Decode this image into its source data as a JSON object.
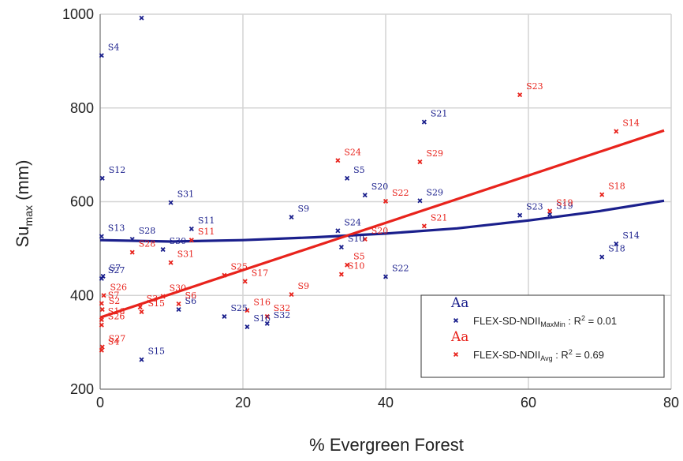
{
  "chart_data": {
    "type": "scatter",
    "xlabel": "% Evergreen Forest",
    "ylabel": "Su",
    "ylabel_sub": "max",
    "ylabel_unit": " (mm)",
    "xlim": [
      0,
      80
    ],
    "ylim": [
      200,
      1000
    ],
    "xticks": [
      "0",
      "20",
      "40",
      "60",
      "80"
    ],
    "yticks": [
      "200",
      "400",
      "600",
      "800",
      "1000"
    ],
    "grid": true,
    "legend_position": "bottom-right",
    "series": [
      {
        "color": "#1a1f8c",
        "legend_header": "Aa",
        "legend_main": "FLEX-SD-NDII",
        "legend_sub": "MaxMin",
        "legend_r2": " : R",
        "legend_sup": "2",
        "legend_val": " = 0.01",
        "points": [
          {
            "label": "S4",
            "x": 0.2,
            "y": 912
          },
          {
            "label": "S12",
            "x": 0.3,
            "y": 650
          },
          {
            "label": "S13",
            "x": 0.2,
            "y": 526
          },
          {
            "label": "S7",
            "x": 0.4,
            "y": 441
          },
          {
            "label": "S27",
            "x": 0.2,
            "y": 436
          },
          {
            "label": "S28",
            "x": 4.5,
            "y": 520
          },
          {
            "label": "",
            "x": 5.8,
            "y": 992
          },
          {
            "label": "S30",
            "x": 8.8,
            "y": 498
          },
          {
            "label": "S31",
            "x": 9.9,
            "y": 598
          },
          {
            "label": "S11",
            "x": 12.8,
            "y": 542
          },
          {
            "label": "S6",
            "x": 11.0,
            "y": 370
          },
          {
            "label": "S15",
            "x": 5.8,
            "y": 263
          },
          {
            "label": "S25",
            "x": 17.4,
            "y": 355
          },
          {
            "label": "S16",
            "x": 20.6,
            "y": 333
          },
          {
            "label": "S32",
            "x": 23.4,
            "y": 340
          },
          {
            "label": "S9",
            "x": 26.8,
            "y": 567
          },
          {
            "label": "S5",
            "x": 34.6,
            "y": 650
          },
          {
            "label": "S20",
            "x": 37.1,
            "y": 614
          },
          {
            "label": "S24",
            "x": 33.3,
            "y": 538
          },
          {
            "label": "S10",
            "x": 33.8,
            "y": 503
          },
          {
            "label": "S22",
            "x": 40.0,
            "y": 440
          },
          {
            "label": "S21",
            "x": 45.4,
            "y": 770
          },
          {
            "label": "S29",
            "x": 44.8,
            "y": 602
          },
          {
            "label": "S23",
            "x": 58.8,
            "y": 571
          },
          {
            "label": "S19",
            "x": 63.0,
            "y": 573
          },
          {
            "label": "S14",
            "x": 72.3,
            "y": 510
          },
          {
            "label": "S18",
            "x": 70.3,
            "y": 482
          }
        ]
      },
      {
        "color": "#e8231c",
        "legend_header": "Aa",
        "legend_main": "FLEX-SD-NDII",
        "legend_sub": "Avg",
        "legend_r2": " : R",
        "legend_sup": "2",
        "legend_val": " = 0.69",
        "points": [
          {
            "label": "S7",
            "x": 0.2,
            "y": 383
          },
          {
            "label": "S26",
            "x": 0.5,
            "y": 400
          },
          {
            "label": "S2",
            "x": 0.3,
            "y": 370
          },
          {
            "label": "S16",
            "x": 0.2,
            "y": 348
          },
          {
            "label": "S26",
            "x": 0.2,
            "y": 337
          },
          {
            "label": "S27",
            "x": 0.3,
            "y": 290
          },
          {
            "label": "S4",
            "x": 0.2,
            "y": 283
          },
          {
            "label": "S28",
            "x": 4.5,
            "y": 492
          },
          {
            "label": "S3",
            "x": 5.6,
            "y": 375
          },
          {
            "label": "S15",
            "x": 5.8,
            "y": 365
          },
          {
            "label": "S30",
            "x": 8.8,
            "y": 398
          },
          {
            "label": "S31",
            "x": 9.9,
            "y": 470
          },
          {
            "label": "S6",
            "x": 11.0,
            "y": 382
          },
          {
            "label": "S11",
            "x": 12.8,
            "y": 518
          },
          {
            "label": "S25",
            "x": 17.4,
            "y": 443
          },
          {
            "label": "S17",
            "x": 20.3,
            "y": 430
          },
          {
            "label": "S16",
            "x": 20.6,
            "y": 368
          },
          {
            "label": "S32",
            "x": 23.4,
            "y": 355
          },
          {
            "label": "S9",
            "x": 26.8,
            "y": 402
          },
          {
            "label": "S24",
            "x": 33.3,
            "y": 688
          },
          {
            "label": "S5",
            "x": 34.6,
            "y": 465
          },
          {
            "label": "S10",
            "x": 33.8,
            "y": 445
          },
          {
            "label": "S20",
            "x": 37.1,
            "y": 520
          },
          {
            "label": "S22",
            "x": 40.0,
            "y": 601
          },
          {
            "label": "S29",
            "x": 44.8,
            "y": 685
          },
          {
            "label": "S21",
            "x": 45.4,
            "y": 548
          },
          {
            "label": "S23",
            "x": 58.8,
            "y": 828
          },
          {
            "label": "S19",
            "x": 63.0,
            "y": 580
          },
          {
            "label": "S14",
            "x": 72.3,
            "y": 750
          },
          {
            "label": "S18",
            "x": 70.3,
            "y": 615
          }
        ]
      }
    ],
    "fits": [
      {
        "color": "#1a1f8c",
        "kind": "quadratic",
        "x": [
          0,
          10,
          20,
          30,
          40,
          50,
          60,
          70,
          79
        ],
        "y": [
          518,
          515,
          518,
          524,
          532,
          543,
          560,
          580,
          602
        ]
      },
      {
        "color": "#e8231c",
        "kind": "linear",
        "x": [
          0,
          79
        ],
        "y": [
          353,
          752
        ]
      }
    ]
  }
}
